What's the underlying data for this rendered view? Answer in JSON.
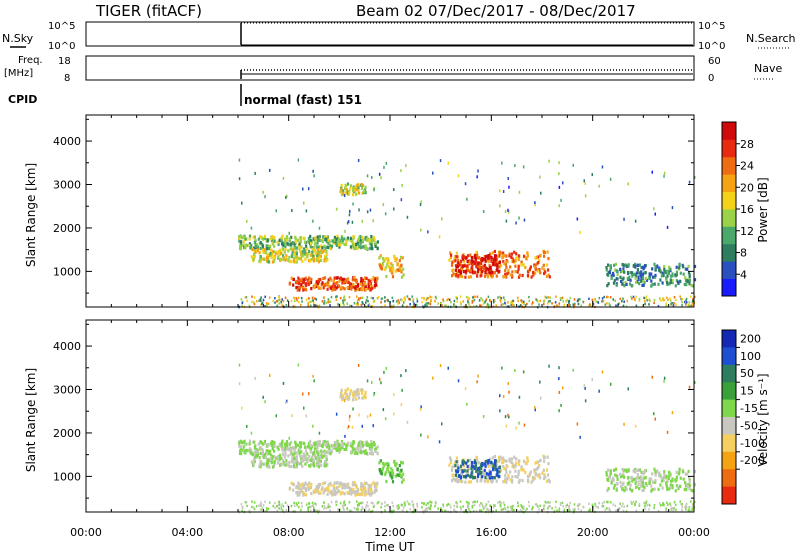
{
  "title": {
    "radar": "TIGER (fitACF)",
    "beam_date": "Beam 02  07/Dec/2017 - 08/Dec/2017"
  },
  "top_panels": {
    "nsky_label": "N.Sky",
    "nsky_ticks": [
      "10^5",
      "10^0"
    ],
    "nsearch_label": "N.Search",
    "nsearch_ticks": [
      "10^5",
      "10^0"
    ],
    "freq_label_1": "Freq.",
    "freq_label_2": "[MHz]",
    "freq_ticks": [
      "18",
      "8"
    ],
    "nave_label": "Nave",
    "nave_ticks": [
      "60",
      "0"
    ],
    "cpid_label": "CPID",
    "cpid_value": "normal (fast) 151"
  },
  "x_axis": {
    "label": "Time UT",
    "ticks": [
      "00:00",
      "04:00",
      "08:00",
      "12:00",
      "16:00",
      "20:00",
      "00:00"
    ],
    "range_hours": [
      0,
      24
    ]
  },
  "y_axis": {
    "label": "Slant Range [km]",
    "ticks": [
      "1000",
      "2000",
      "3000",
      "4000"
    ],
    "range_km": [
      180,
      4600
    ]
  },
  "power_colorbar": {
    "label": "Power [dB]",
    "ticks": [
      "4",
      "8",
      "12",
      "16",
      "20",
      "24",
      "28"
    ],
    "colors": [
      "#1a1aff",
      "#2a50c0",
      "#2e7d5f",
      "#4aa86a",
      "#9bd24a",
      "#f5d21a",
      "#f5a312",
      "#ee6d10",
      "#e82a10",
      "#d00a0a"
    ]
  },
  "velocity_colorbar": {
    "label": "Velocity [m s⁻¹]",
    "ticks": [
      "200",
      "100",
      "50",
      "15",
      "-15",
      "-50",
      "-100",
      "-200"
    ],
    "colors": [
      "#1428b4",
      "#1e4fd2",
      "#2e7d5f",
      "#3aa03a",
      "#7ed84a",
      "#c8c8c0",
      "#f5d060",
      "#f5a312",
      "#ee6d10",
      "#e82a10"
    ]
  },
  "chart_data": {
    "type": "heatmap",
    "title": "TIGER (fitACF)  Beam 02  07/Dec/2017 - 08/Dec/2017",
    "xlabel": "Time UT",
    "ylabel": "Slant Range [km]",
    "x_range_hours": [
      0,
      24
    ],
    "y_range_km": [
      180,
      4600
    ],
    "cpid_start_hour": 6.0,
    "echo_regions": [
      {
        "name": "band-a",
        "t0": 6.0,
        "t1": 11.5,
        "r0": 1550,
        "r1": 1850,
        "power": 12,
        "velocity": 5
      },
      {
        "name": "band-b",
        "t0": 6.5,
        "t1": 9.5,
        "r0": 1250,
        "r1": 1550,
        "power": 16,
        "velocity": 0
      },
      {
        "name": "band-c",
        "t0": 8.0,
        "t1": 11.5,
        "r0": 600,
        "r1": 900,
        "power": 24,
        "velocity": -40
      },
      {
        "name": "blob-3000",
        "t0": 10.0,
        "t1": 11.0,
        "r0": 2800,
        "r1": 3050,
        "power": 14,
        "velocity": -60
      },
      {
        "name": "patch-12h",
        "t0": 11.5,
        "t1": 12.5,
        "r0": 900,
        "r1": 1400,
        "power": 18,
        "velocity": 40
      },
      {
        "name": "band-d",
        "t0": 14.3,
        "t1": 18.3,
        "r0": 900,
        "r1": 1500,
        "power": 22,
        "velocity": -40
      },
      {
        "name": "core-d",
        "t0": 14.5,
        "t1": 16.3,
        "r0": 1000,
        "r1": 1400,
        "power": 28,
        "velocity": 150
      },
      {
        "name": "band-e",
        "t0": 20.5,
        "t1": 24.0,
        "r0": 700,
        "r1": 1200,
        "power": 8,
        "velocity": 0
      }
    ],
    "power_range_db": [
      0,
      30
    ],
    "velocity_range_ms": [
      -250,
      250
    ]
  }
}
